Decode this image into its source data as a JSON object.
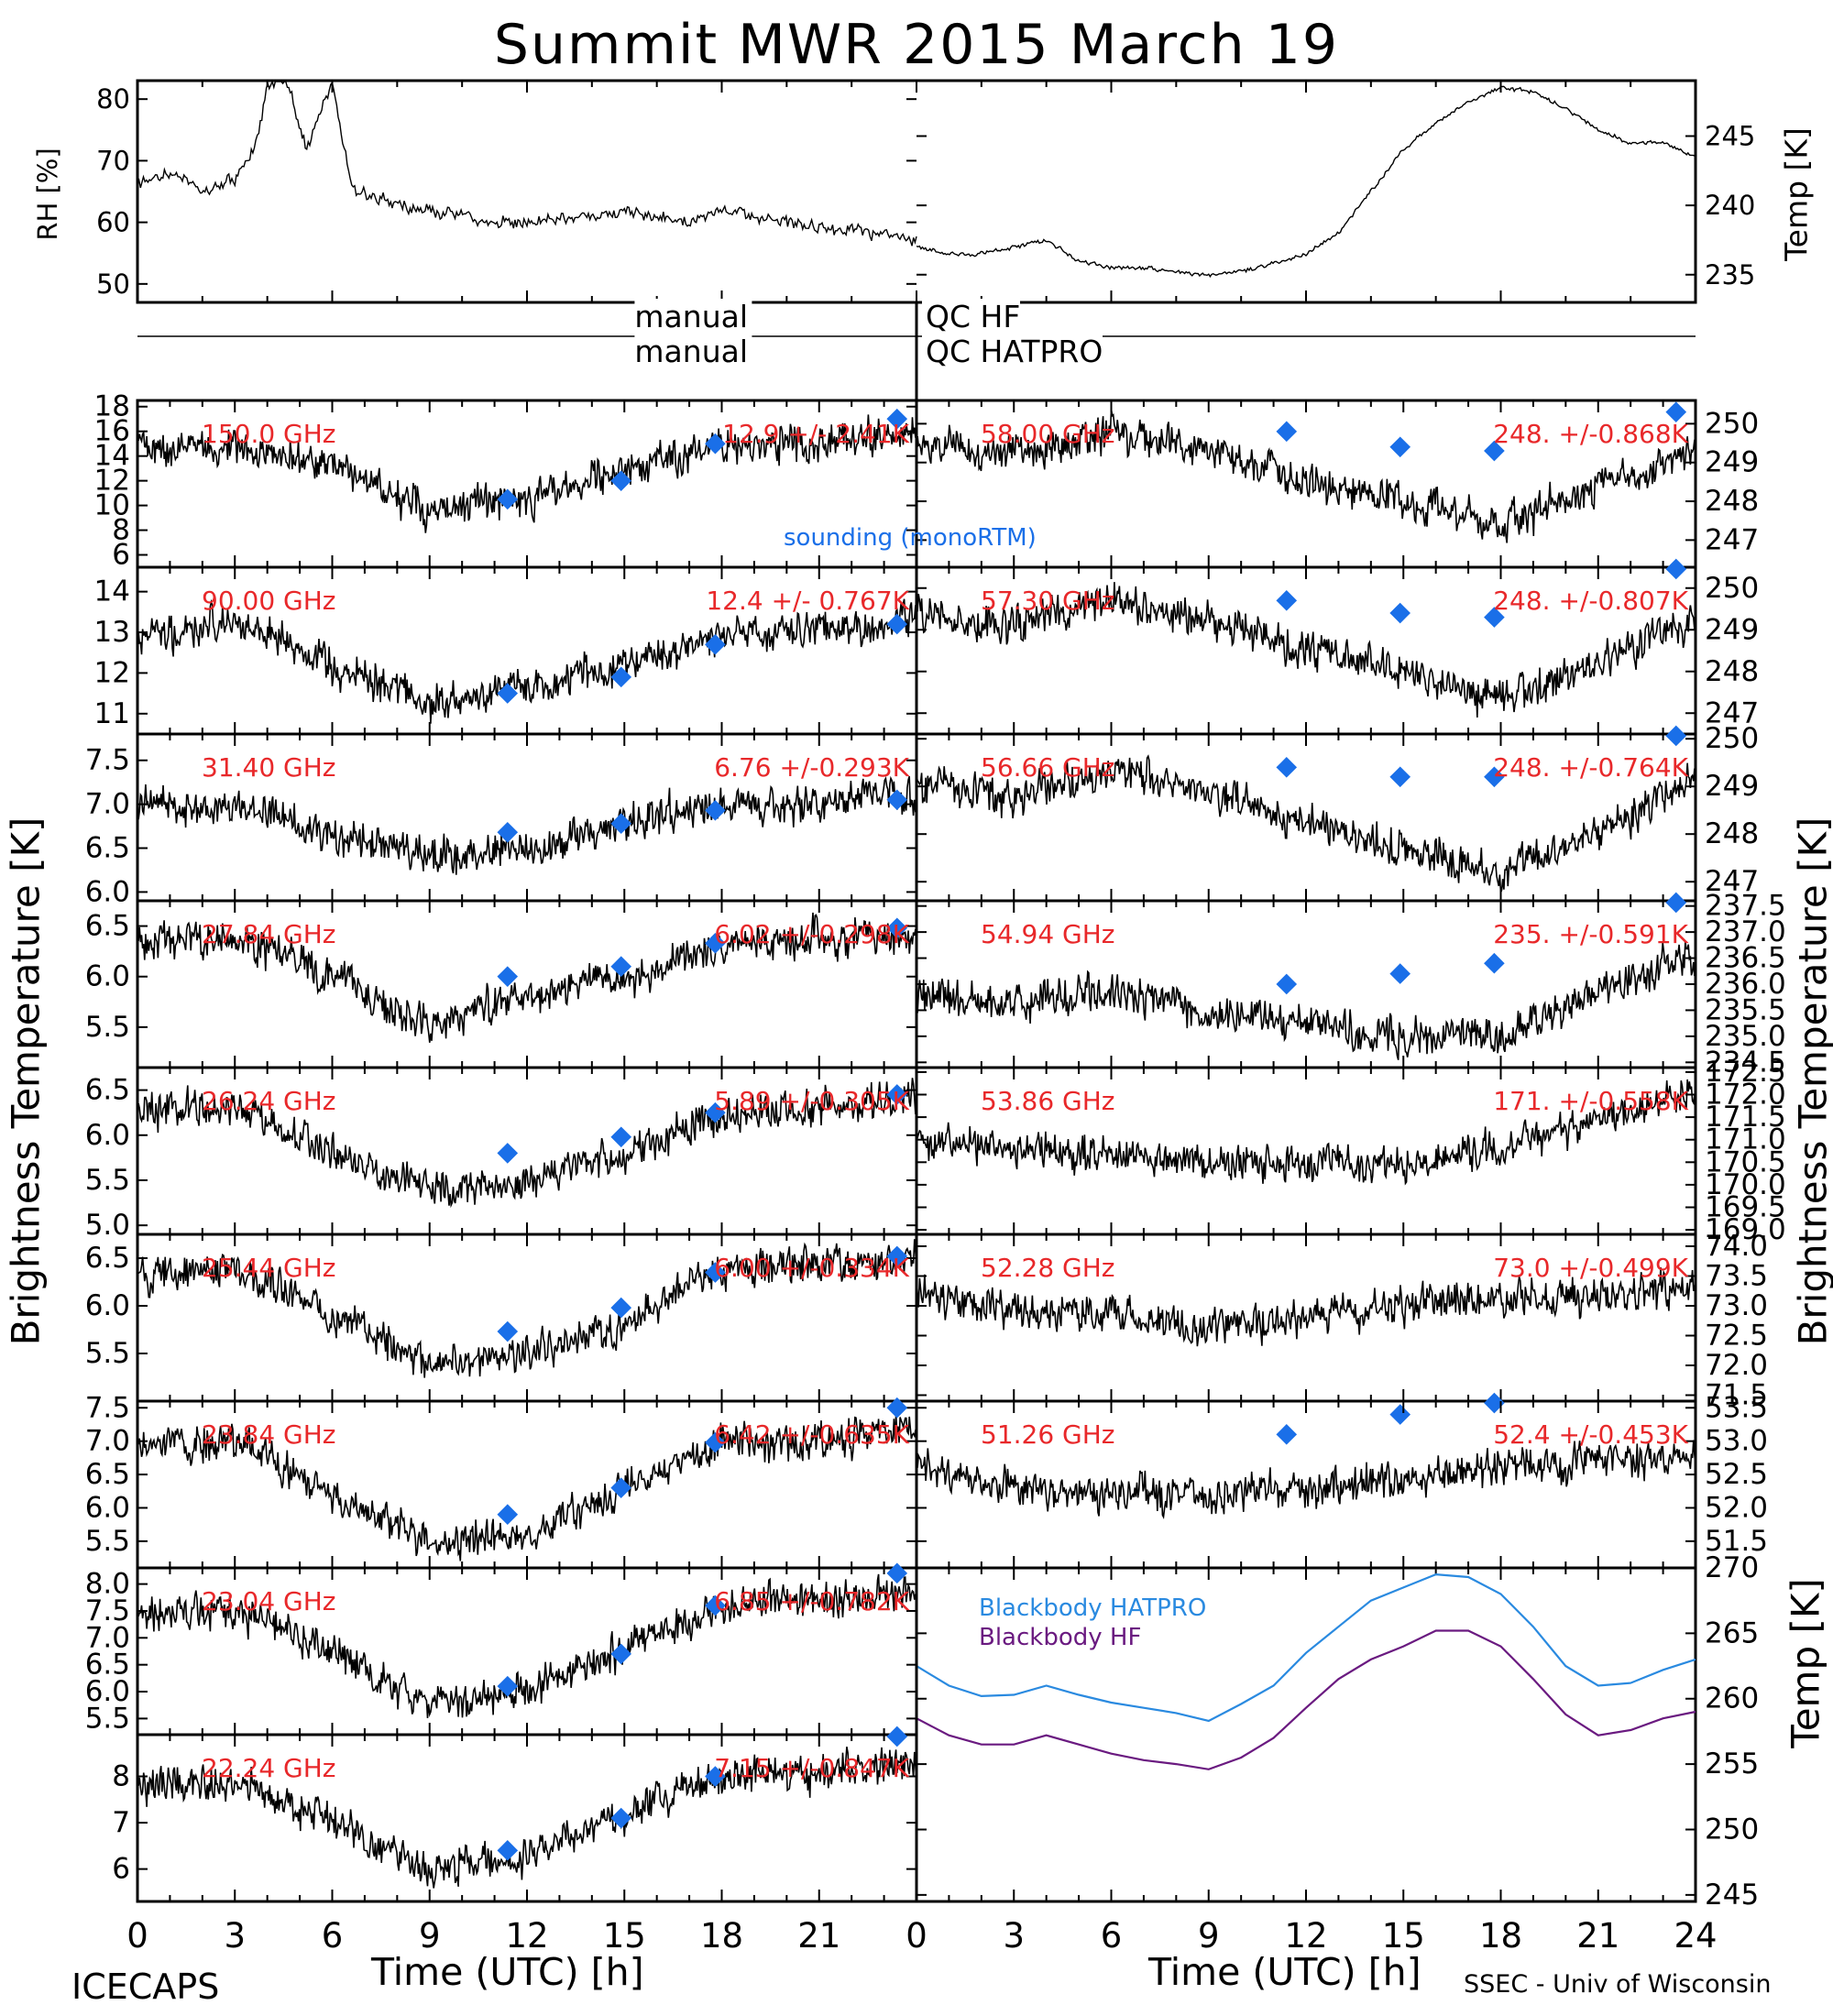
{
  "title": "Summit MWR 2015 March 19",
  "footer_left": "ICECAPS",
  "footer_right": "SSEC - Univ of Wisconsin",
  "x_label": "Time (UTC) [h]",
  "y_label_left": "Brightness Temperature [K]",
  "y_label_right": "Brightness Temperature [K]",
  "x_ticks": [
    "0",
    "3",
    "6",
    "9",
    "12",
    "15",
    "18",
    "21",
    "24"
  ],
  "x_ticks_left": [
    "0",
    "3",
    "6",
    "9",
    "12",
    "15",
    "18",
    "21"
  ],
  "qc_labels": {
    "hf_prefix": "manual",
    "hf_suffix": "QC HF",
    "hatpro_prefix": "manual",
    "hatpro_suffix": "QC HATPRO"
  },
  "legend": {
    "sounding": "sounding (monoRTM)",
    "bb_hatpro": "Blackbody HATPRO",
    "bb_hf": "Blackbody HF"
  },
  "colors": {
    "sounding": "#1a6fe8",
    "annot": "#e8282a",
    "bb_hatpro": "#2a8ae0",
    "bb_hf": "#6a1a80",
    "trace": "#000000"
  },
  "chart_data": [
    {
      "type": "line",
      "id": "rh",
      "ylabel": "RH [%]",
      "ylim": [
        47,
        83
      ],
      "yticks": [
        50,
        60,
        70,
        80
      ],
      "xlim": [
        0,
        12
      ],
      "series": [
        {
          "x": [
            0,
            0.5,
            1,
            1.5,
            1.8,
            2,
            2.3,
            2.6,
            3,
            3.3,
            3.6,
            4,
            4.5,
            5,
            5.5,
            6,
            6.5,
            7,
            7.5,
            8,
            8.5,
            9,
            9.5,
            10,
            10.5,
            11,
            11.5,
            12
          ],
          "y": [
            66,
            68,
            65,
            67,
            72,
            82,
            83,
            72,
            83,
            66,
            64,
            63,
            62,
            61,
            60,
            60,
            61,
            61,
            62,
            61,
            60,
            62,
            61,
            60,
            59,
            59,
            58,
            57
          ]
        }
      ]
    },
    {
      "type": "line",
      "id": "temp",
      "ylabel": "Temp [K]",
      "ylim": [
        233,
        249
      ],
      "yticks": [
        235,
        240,
        245
      ],
      "xlim": [
        12,
        24
      ],
      "series": [
        {
          "x": [
            12,
            12.5,
            13,
            13.5,
            14,
            14.5,
            15,
            15.5,
            16,
            16.5,
            17,
            17.5,
            18,
            18.5,
            19,
            19.5,
            20,
            20.5,
            21,
            21.5,
            22,
            22.5,
            23,
            23.5,
            24
          ],
          "y": [
            237,
            236.5,
            236.5,
            237,
            237.5,
            236,
            235.5,
            235.5,
            235.2,
            235,
            235.2,
            235.8,
            236.5,
            238,
            241,
            244,
            246,
            247.5,
            248.5,
            248.2,
            247,
            245.5,
            244.5,
            244.5,
            243.5
          ]
        }
      ]
    },
    {
      "type": "line",
      "side": "left",
      "freq": "150.0 GHz",
      "stat": "12.9 +/- 2.41K",
      "ylim": [
        5,
        18.5
      ],
      "yticks": [
        6,
        8,
        10,
        12,
        14,
        16,
        18
      ],
      "series": [
        {
          "x": [
            0,
            3,
            6,
            9,
            12,
            15,
            18,
            21,
            24
          ],
          "y": [
            14.5,
            15,
            13,
            9.5,
            10.5,
            13,
            15,
            15,
            16
          ]
        }
      ],
      "sounding": {
        "x": [
          11.4,
          14.9,
          17.8,
          23.4
        ],
        "y": [
          10.5,
          12,
          15,
          17
        ]
      }
    },
    {
      "type": "line",
      "side": "left",
      "freq": "90.00 GHz",
      "stat": "12.4 +/- 0.767K",
      "ylim": [
        10.5,
        14.6
      ],
      "yticks": [
        11,
        12,
        13,
        14
      ],
      "series": [
        {
          "x": [
            0,
            3,
            6,
            9,
            12,
            15,
            18,
            21,
            24
          ],
          "y": [
            12.8,
            13.3,
            12.2,
            11.3,
            11.6,
            12.2,
            12.9,
            13.1,
            13.3
          ]
        }
      ],
      "sounding": {
        "x": [
          11.4,
          14.9,
          17.8,
          23.4
        ],
        "y": [
          11.5,
          11.9,
          12.7,
          13.2
        ]
      }
    },
    {
      "type": "line",
      "side": "left",
      "freq": "31.40 GHz",
      "stat": "6.76 +/-0.293K",
      "ylim": [
        5.9,
        7.8
      ],
      "yticks": [
        6.0,
        6.5,
        7.0,
        7.5
      ],
      "series": [
        {
          "x": [
            0,
            3,
            6,
            9,
            12,
            15,
            18,
            21,
            24
          ],
          "y": [
            7.0,
            7.0,
            6.7,
            6.4,
            6.5,
            6.8,
            7.0,
            7.0,
            7.1
          ]
        }
      ],
      "sounding": {
        "x": [
          11.4,
          14.9,
          17.8,
          23.4
        ],
        "y": [
          6.68,
          6.78,
          6.93,
          7.05
        ]
      }
    },
    {
      "type": "line",
      "side": "left",
      "freq": "27.84 GHz",
      "stat": "6.02 +/-0.298K",
      "ylim": [
        5.1,
        6.75
      ],
      "yticks": [
        5.5,
        6.0,
        6.5
      ],
      "series": [
        {
          "x": [
            0,
            3,
            6,
            9,
            12,
            15,
            18,
            21,
            24
          ],
          "y": [
            6.3,
            6.4,
            6.0,
            5.5,
            5.8,
            6.0,
            6.3,
            6.4,
            6.4
          ]
        }
      ],
      "sounding": {
        "x": [
          11.4,
          14.9,
          17.8,
          23.4
        ],
        "y": [
          6.0,
          6.1,
          6.33,
          6.48
        ]
      }
    },
    {
      "type": "line",
      "side": "left",
      "freq": "26.24 GHz",
      "stat": "5.89 +/-0.305K",
      "ylim": [
        4.9,
        6.75
      ],
      "yticks": [
        5.0,
        5.5,
        6.0,
        6.5
      ],
      "series": [
        {
          "x": [
            0,
            3,
            6,
            9,
            12,
            15,
            18,
            21,
            24
          ],
          "y": [
            6.3,
            6.3,
            5.8,
            5.4,
            5.5,
            5.8,
            6.2,
            6.3,
            6.4
          ]
        }
      ],
      "sounding": {
        "x": [
          11.4,
          14.9,
          17.8,
          23.4
        ],
        "y": [
          5.8,
          5.98,
          6.25,
          6.45
        ]
      }
    },
    {
      "type": "line",
      "side": "left",
      "freq": "25.44 GHz",
      "stat": "6.00 +/-0.334K",
      "ylim": [
        5.0,
        6.75
      ],
      "yticks": [
        5.5,
        6.0,
        6.5
      ],
      "series": [
        {
          "x": [
            0,
            3,
            6,
            9,
            12,
            15,
            18,
            21,
            24
          ],
          "y": [
            6.3,
            6.4,
            5.9,
            5.4,
            5.5,
            5.8,
            6.4,
            6.4,
            6.5
          ]
        }
      ],
      "sounding": {
        "x": [
          11.4,
          14.9,
          17.8,
          23.4
        ],
        "y": [
          5.73,
          5.98,
          6.35,
          6.52
        ]
      }
    },
    {
      "type": "line",
      "side": "left",
      "freq": "23.84 GHz",
      "stat": "6.42 +/-0.635K",
      "ylim": [
        5.1,
        7.6
      ],
      "yticks": [
        5.5,
        6.0,
        6.5,
        7.0,
        7.5
      ],
      "series": [
        {
          "x": [
            0,
            3,
            6,
            9,
            12,
            15,
            18,
            21,
            24
          ],
          "y": [
            6.9,
            7.0,
            6.2,
            5.5,
            5.6,
            6.3,
            7.0,
            7.0,
            7.2
          ]
        }
      ],
      "sounding": {
        "x": [
          11.4,
          14.9,
          17.8,
          23.4
        ],
        "y": [
          5.9,
          6.3,
          6.98,
          7.5
        ]
      }
    },
    {
      "type": "line",
      "side": "left",
      "freq": "23.04 GHz",
      "stat": "6.85 +/-0.782K",
      "ylim": [
        5.2,
        8.3
      ],
      "yticks": [
        5.5,
        6.0,
        6.5,
        7.0,
        7.5,
        8.0
      ],
      "series": [
        {
          "x": [
            0,
            3,
            6,
            9,
            12,
            15,
            18,
            21,
            24
          ],
          "y": [
            7.4,
            7.5,
            6.8,
            5.8,
            6.0,
            6.8,
            7.6,
            7.7,
            7.9
          ]
        }
      ],
      "sounding": {
        "x": [
          11.4,
          14.9,
          17.8,
          23.4
        ],
        "y": [
          6.1,
          6.7,
          7.6,
          8.2
        ]
      }
    },
    {
      "type": "line",
      "side": "left",
      "freq": "22.24 GHz",
      "stat": "7.15 +/-0.847K",
      "ylim": [
        5.3,
        8.9
      ],
      "yticks": [
        6,
        7,
        8
      ],
      "series": [
        {
          "x": [
            0,
            3,
            6,
            9,
            12,
            15,
            18,
            21,
            24
          ],
          "y": [
            7.8,
            7.9,
            7.0,
            6.0,
            6.3,
            7.2,
            8.0,
            8.1,
            8.3
          ]
        }
      ],
      "sounding": {
        "x": [
          11.4,
          14.9,
          17.8,
          23.4
        ],
        "y": [
          6.4,
          7.1,
          8.0,
          8.9
        ]
      }
    },
    {
      "type": "line",
      "side": "right",
      "freq": "58.00 GHz",
      "stat": "248. +/-0.868K",
      "ylim": [
        246.3,
        250.6
      ],
      "yticks": [
        247,
        248,
        249,
        250
      ],
      "series": [
        {
          "x": [
            0,
            3,
            6,
            9,
            12,
            15,
            18,
            21,
            24
          ],
          "y": [
            249.5,
            249.2,
            249.8,
            249.3,
            248.5,
            248.0,
            247.4,
            248.3,
            249.3
          ]
        }
      ],
      "sounding": {
        "x": [
          11.4,
          14.9,
          17.8,
          23.4
        ],
        "y": [
          249.8,
          249.4,
          249.3,
          250.3
        ]
      }
    },
    {
      "type": "line",
      "side": "right",
      "freq": "57.30 GHz",
      "stat": "248. +/-0.807K",
      "ylim": [
        246.5,
        250.5
      ],
      "yticks": [
        247,
        248,
        249,
        250
      ],
      "series": [
        {
          "x": [
            0,
            3,
            6,
            9,
            12,
            15,
            18,
            21,
            24
          ],
          "y": [
            249.3,
            249.1,
            249.7,
            249.2,
            248.5,
            248.0,
            247.3,
            248.2,
            249.3
          ]
        }
      ],
      "sounding": {
        "x": [
          11.4,
          14.9,
          17.8,
          23.4
        ],
        "y": [
          249.7,
          249.4,
          249.3,
          250.5
        ]
      }
    },
    {
      "type": "line",
      "side": "right",
      "freq": "56.66 GHz",
      "stat": "248. +/-0.764K",
      "ylim": [
        246.6,
        250.1
      ],
      "yticks": [
        247,
        248,
        249,
        250
      ],
      "series": [
        {
          "x": [
            0,
            3,
            6,
            9,
            12,
            15,
            18,
            21,
            24
          ],
          "y": [
            249.0,
            248.8,
            249.4,
            248.9,
            248.2,
            247.7,
            247.2,
            248.0,
            249.2
          ]
        }
      ],
      "sounding": {
        "x": [
          11.4,
          14.9,
          17.8,
          23.4
        ],
        "y": [
          249.4,
          249.2,
          249.2,
          250.1
        ]
      }
    },
    {
      "type": "line",
      "side": "right",
      "freq": "54.94 GHz",
      "stat": "235. +/-0.591K",
      "ylim": [
        234.4,
        237.6
      ],
      "yticks": [
        234.5,
        235.0,
        235.5,
        236.0,
        236.5,
        237.0,
        237.5
      ],
      "series": [
        {
          "x": [
            0,
            3,
            6,
            9,
            12,
            15,
            18,
            21,
            24
          ],
          "y": [
            235.8,
            235.6,
            235.9,
            235.4,
            235.3,
            235.0,
            235.0,
            235.8,
            236.6
          ]
        }
      ],
      "sounding": {
        "x": [
          11.4,
          14.9,
          17.8,
          23.4
        ],
        "y": [
          236.0,
          236.2,
          236.4,
          237.6
        ]
      }
    },
    {
      "type": "line",
      "side": "right",
      "freq": "53.86 GHz",
      "stat": "171. +/-0.558K",
      "ylim": [
        168.9,
        172.6
      ],
      "yticks": [
        169.0,
        169.5,
        170.0,
        170.5,
        171.0,
        171.5,
        172.0,
        172.5
      ],
      "series": [
        {
          "x": [
            0,
            3,
            6,
            9,
            12,
            15,
            18,
            21,
            24
          ],
          "y": [
            171.0,
            170.8,
            170.7,
            170.5,
            170.4,
            170.5,
            170.8,
            171.5,
            172.0
          ]
        }
      ]
    },
    {
      "type": "line",
      "side": "right",
      "freq": "52.28 GHz",
      "stat": "73.0 +/-0.499K",
      "ylim": [
        71.4,
        74.2
      ],
      "yticks": [
        71.5,
        72.0,
        72.5,
        73.0,
        73.5,
        74.0
      ],
      "series": [
        {
          "x": [
            0,
            3,
            6,
            9,
            12,
            15,
            18,
            21,
            24
          ],
          "y": [
            73.2,
            72.9,
            72.9,
            72.6,
            72.8,
            73.0,
            73.1,
            73.2,
            73.3
          ]
        }
      ]
    },
    {
      "type": "line",
      "side": "right",
      "freq": "51.26 GHz",
      "stat": "52.4 +/-0.453K",
      "ylim": [
        51.1,
        53.6
      ],
      "yticks": [
        51.5,
        52.0,
        52.5,
        53.0,
        53.5
      ],
      "series": [
        {
          "x": [
            0,
            3,
            6,
            9,
            12,
            15,
            18,
            21,
            24
          ],
          "y": [
            52.6,
            52.3,
            52.2,
            52.2,
            52.3,
            52.4,
            52.6,
            52.7,
            52.8
          ]
        }
      ],
      "sounding": {
        "x": [
          11.4,
          14.9,
          17.8
        ],
        "y": [
          53.1,
          53.4,
          53.7
        ]
      }
    },
    {
      "type": "line",
      "id": "blackbody",
      "ylabel": "Temp [K]",
      "ylim": [
        244.5,
        270
      ],
      "yticks": [
        245,
        250,
        255,
        260,
        265,
        270
      ],
      "xlim": [
        0,
        24
      ],
      "series": [
        {
          "name": "Blackbody HATPRO",
          "x": [
            0,
            1,
            2,
            3,
            4,
            5,
            6,
            7,
            8,
            9,
            10,
            11,
            12,
            13,
            14,
            15,
            16,
            17,
            18,
            19,
            20,
            21,
            22,
            23,
            24
          ],
          "y": [
            262.5,
            261,
            260.2,
            260.3,
            261,
            260.3,
            259.7,
            259.3,
            258.9,
            258.3,
            259.6,
            261,
            263.5,
            265.5,
            267.5,
            268.5,
            269.5,
            269.3,
            268,
            265.5,
            262.5,
            261,
            261.2,
            262.2,
            263
          ]
        },
        {
          "name": "Blackbody HF",
          "x": [
            0,
            1,
            2,
            3,
            4,
            5,
            6,
            7,
            8,
            9,
            10,
            11,
            12,
            13,
            14,
            15,
            16,
            17,
            18,
            19,
            20,
            21,
            22,
            23,
            24
          ],
          "y": [
            258.5,
            257.2,
            256.5,
            256.5,
            257.2,
            256.5,
            255.8,
            255.3,
            255,
            254.6,
            255.5,
            257,
            259.3,
            261.5,
            263,
            264,
            265.2,
            265.2,
            264,
            261.5,
            258.8,
            257.2,
            257.6,
            258.5,
            259
          ]
        }
      ]
    }
  ]
}
